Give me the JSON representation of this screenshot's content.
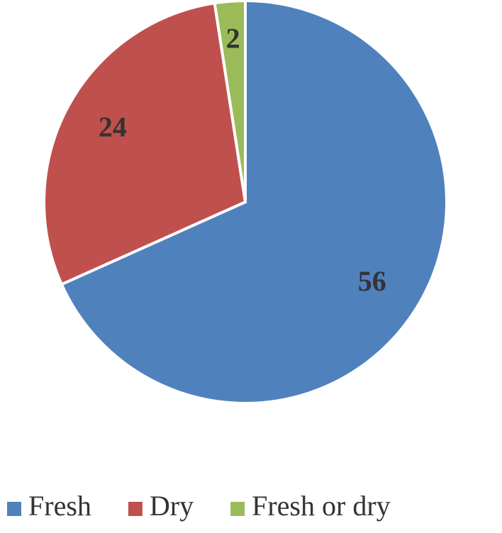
{
  "chart_data": {
    "type": "pie",
    "categories": [
      "Fresh",
      "Dry",
      "Fresh or dry"
    ],
    "values": [
      56,
      24,
      2
    ],
    "colors": [
      "#4f81bd",
      "#c0504d",
      "#9bbb59"
    ],
    "legend": "bottom"
  }
}
